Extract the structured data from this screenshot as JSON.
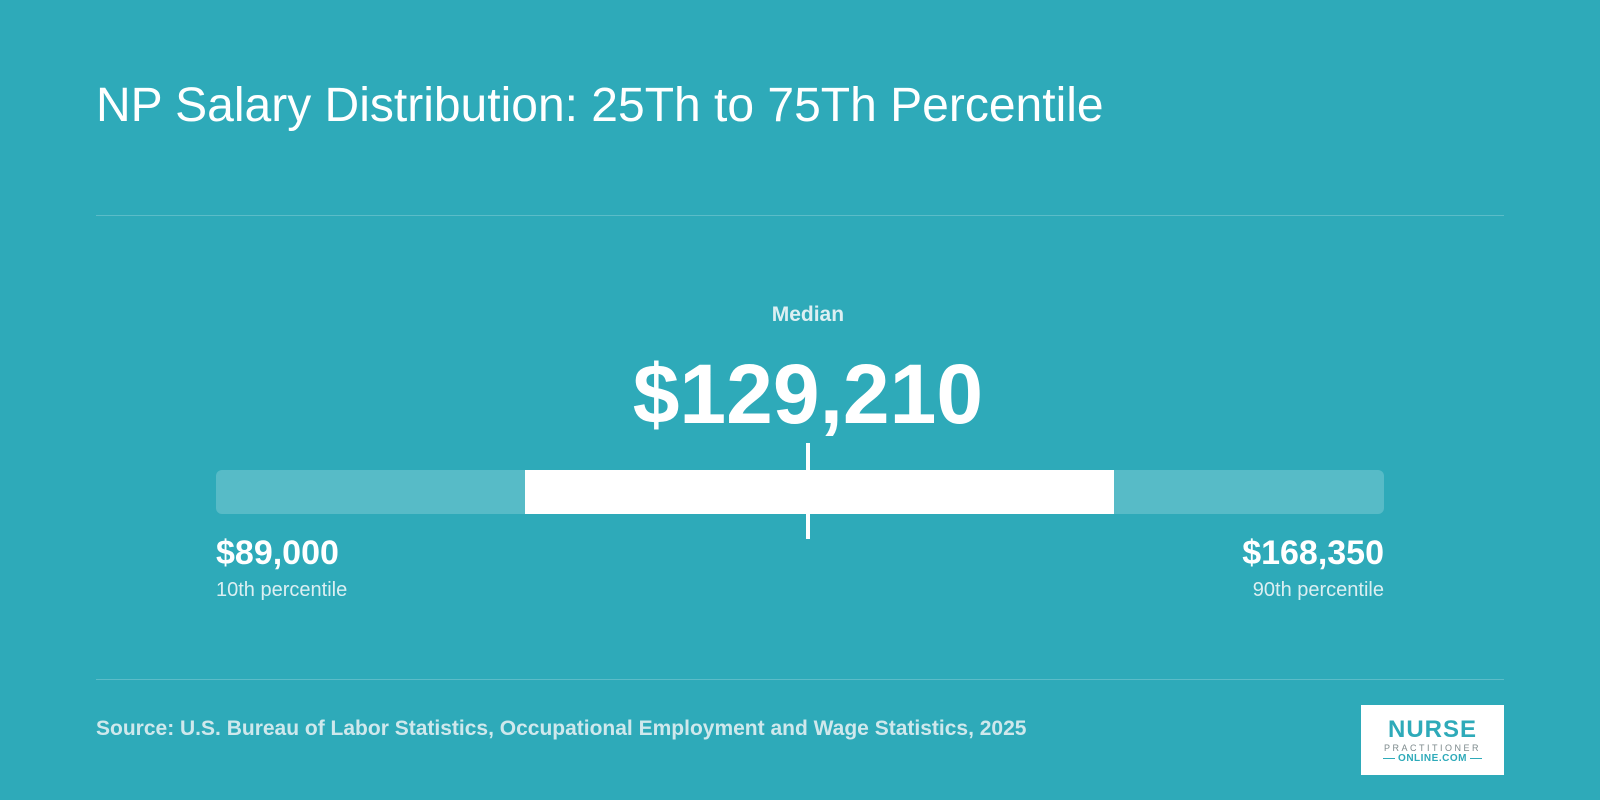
{
  "title": "NP Salary Distribution: 25Th to 75Th Percentile",
  "chart_data": {
    "type": "range-bar",
    "title": "NP Salary Distribution: 25Th to 75Th Percentile",
    "range": {
      "min": 89000,
      "max": 168350
    },
    "percentiles": {
      "p10": 89000,
      "p25": 110000,
      "median": 129210,
      "p75": 150000,
      "p90": 168350
    },
    "labels": {
      "median_label": "Median",
      "median_value": "$129,210",
      "low_value": "$89,000",
      "low_label": "10th percentile",
      "high_value": "$168,350",
      "high_label": "90th percentile"
    }
  },
  "source": "Source: U.S. Bureau of Labor Statistics, Occupational Employment and Wage Statistics, 2025",
  "logo": {
    "line1": "NURSE",
    "line2": "PRACTITIONER",
    "line3": "ONLINE.COM"
  },
  "colors": {
    "background": "#2eaab9",
    "accent": "#ffffff"
  }
}
